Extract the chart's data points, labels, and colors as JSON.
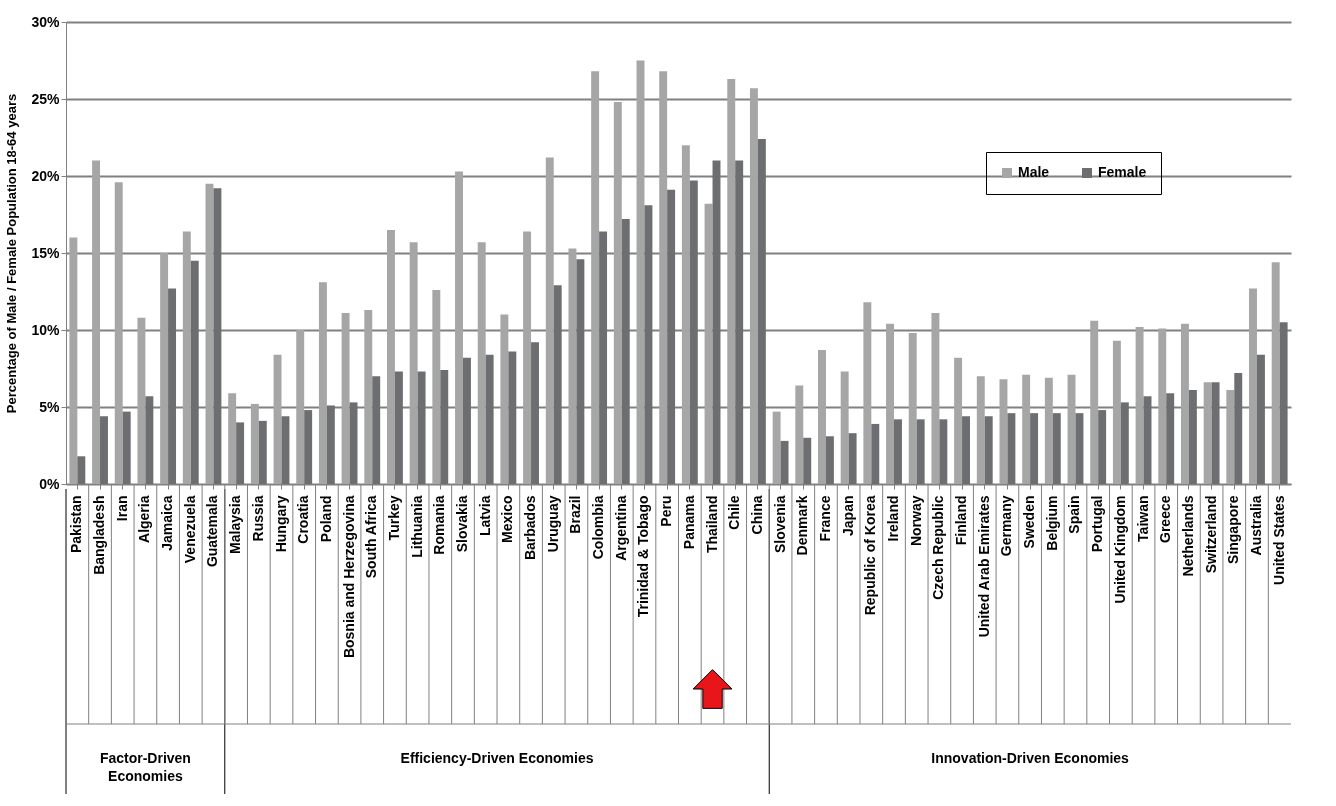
{
  "chart_data": {
    "type": "bar",
    "ylabel": "Percentage of Male / Female Population 18-64 years",
    "categories": [
      "Pakistan",
      "Bangladesh",
      "Iran",
      "Algeria",
      "Jamaica",
      "Venezuela",
      "Guatemala",
      "Malaysia",
      "Russia",
      "Hungary",
      "Croatia",
      "Poland",
      "Bosnia and Herzegovina",
      "South Africa",
      "Turkey",
      "Lithuania",
      "Romania",
      "Slovakia",
      "Latvia",
      "Mexico",
      "Barbados",
      "Uruguay",
      "Brazil",
      "Colombia",
      "Argentina",
      "Trinidad & Tobago",
      "Peru",
      "Panama",
      "Thailand",
      "Chile",
      "China",
      "Slovenia",
      "Denmark",
      "France",
      "Japan",
      "Republic of Korea",
      "Ireland",
      "Norway",
      "Czech Republic",
      "Finland",
      "United Arab Emirates",
      "Germany",
      "Sweden",
      "Belgium",
      "Spain",
      "Portugal",
      "United Kingdom",
      "Taiwan",
      "Greece",
      "Netherlands",
      "Switzerland",
      "Singapore",
      "Australia",
      "United States"
    ],
    "series": [
      {
        "name": "Male",
        "color": "#a6a6a6",
        "values": [
          16.0,
          21.0,
          19.6,
          10.8,
          15.0,
          16.4,
          19.5,
          5.9,
          5.2,
          8.4,
          10.0,
          13.1,
          11.1,
          11.3,
          16.5,
          15.7,
          12.6,
          20.3,
          15.7,
          11.0,
          16.4,
          21.2,
          15.3,
          26.8,
          24.8,
          27.5,
          26.8,
          22.0,
          18.2,
          26.3,
          25.7,
          4.7,
          6.4,
          8.7,
          7.3,
          11.8,
          10.4,
          9.8,
          11.1,
          8.2,
          7.0,
          6.8,
          7.1,
          6.9,
          7.1,
          10.6,
          9.3,
          10.2,
          10.1,
          10.4,
          6.6,
          6.1,
          12.7,
          14.4
        ]
      },
      {
        "name": "Female",
        "color": "#6d6e71",
        "values": [
          1.8,
          4.4,
          4.7,
          5.7,
          12.7,
          14.5,
          19.2,
          4.0,
          4.1,
          4.4,
          4.8,
          5.1,
          5.3,
          7.0,
          7.3,
          7.3,
          7.4,
          8.2,
          8.4,
          8.6,
          9.2,
          12.9,
          14.6,
          16.4,
          17.2,
          18.1,
          19.1,
          19.7,
          21.0,
          21.0,
          22.4,
          2.8,
          3.0,
          3.1,
          3.3,
          3.9,
          4.2,
          4.2,
          4.2,
          4.4,
          4.4,
          4.6,
          4.6,
          4.6,
          4.6,
          4.8,
          5.3,
          5.7,
          5.9,
          6.1,
          6.6,
          7.2,
          8.4,
          10.5
        ]
      }
    ],
    "ylim": [
      0,
      30
    ],
    "yticks": [
      {
        "value": 0,
        "label": "0%"
      },
      {
        "value": 5,
        "label": "5%"
      },
      {
        "value": 10,
        "label": "10%"
      },
      {
        "value": 15,
        "label": "15%"
      },
      {
        "value": 20,
        "label": "20%"
      },
      {
        "value": 25,
        "label": "25%"
      },
      {
        "value": 30,
        "label": "30%"
      }
    ],
    "grid": "y",
    "legend": "top right",
    "annotations": [
      "Factor-Driven\nEconomies",
      "Efficiency-Driven Economies",
      "Innovation-Driven Economies"
    ]
  }
}
